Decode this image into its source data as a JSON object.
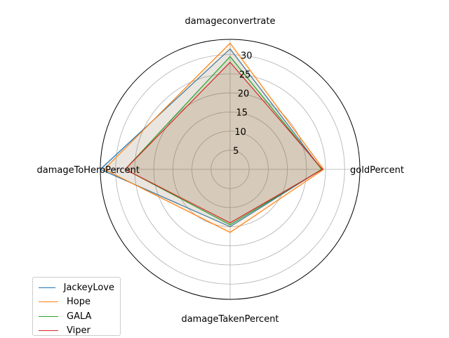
{
  "chart_data": {
    "type": "radar",
    "title": "",
    "axes": [
      "damageconvertrate",
      "goldPercent",
      "damageTakenPercent",
      "damageToHeroPercent"
    ],
    "rticks": [
      5,
      10,
      15,
      20,
      25,
      30
    ],
    "rlim": [
      0,
      34
    ],
    "grid": true,
    "legend_placement": "lower-left",
    "series": [
      {
        "name": "JackeyLove",
        "color": "#1f77b4",
        "values": [
          31.5,
          24,
          15,
          34
        ]
      },
      {
        "name": "Hope",
        "color": "#ff7f0e",
        "values": [
          33,
          24.5,
          16.5,
          33
        ]
      },
      {
        "name": "GALA",
        "color": "#2ca02c",
        "values": [
          29.5,
          24,
          14.5,
          27.5
        ]
      },
      {
        "name": "Viper",
        "color": "#d62728",
        "values": [
          28,
          24.2,
          14,
          27.5
        ]
      }
    ]
  }
}
